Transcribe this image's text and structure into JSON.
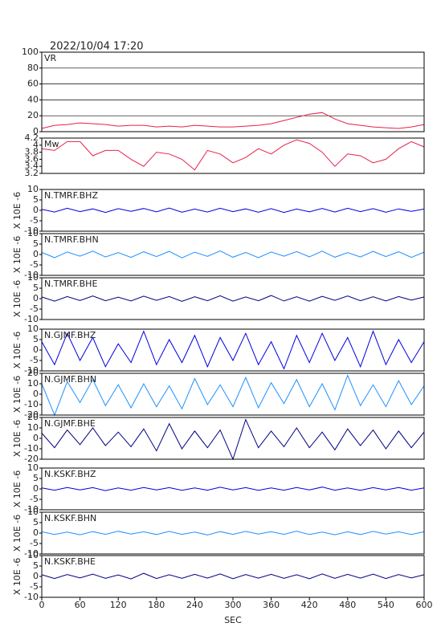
{
  "chart_data": [
    {
      "type": "line",
      "title": "2022/10/04  17:20",
      "x": [
        0,
        20,
        40,
        60,
        80,
        100,
        120,
        140,
        160,
        180,
        200,
        220,
        240,
        260,
        280,
        300,
        320,
        340,
        360,
        380,
        400,
        420,
        440,
        460,
        480,
        500,
        520,
        540,
        560,
        580,
        600
      ],
      "xlim": [
        0,
        600
      ],
      "ylim": [
        0,
        100
      ],
      "yticks": [
        0,
        20,
        40,
        60,
        80,
        100
      ],
      "grid": true,
      "series": [
        {
          "name": "VR",
          "color": "#e8204c",
          "values": [
            4,
            8,
            9,
            11,
            10,
            9,
            7,
            8,
            8,
            6,
            7,
            6,
            8,
            7,
            6,
            6,
            7,
            8,
            10,
            14,
            18,
            22,
            24,
            16,
            10,
            8,
            6,
            5,
            4,
            6,
            9
          ]
        }
      ]
    },
    {
      "type": "line",
      "x": [
        0,
        20,
        40,
        60,
        80,
        100,
        120,
        140,
        160,
        180,
        200,
        220,
        240,
        260,
        280,
        300,
        320,
        340,
        360,
        380,
        400,
        420,
        440,
        460,
        480,
        500,
        520,
        540,
        560,
        580,
        600
      ],
      "xlim": [
        0,
        600
      ],
      "ylim": [
        3.2,
        4.2
      ],
      "yticks": [
        3.2,
        3.4,
        3.6,
        3.8,
        4,
        4.2
      ],
      "grid": false,
      "series": [
        {
          "name": "Mw",
          "color": "#e8204c",
          "values": [
            3.9,
            3.85,
            4.1,
            4.1,
            3.7,
            3.85,
            3.85,
            3.6,
            3.4,
            3.8,
            3.75,
            3.6,
            3.3,
            3.85,
            3.75,
            3.5,
            3.65,
            3.9,
            3.75,
            4.0,
            4.15,
            4.05,
            3.8,
            3.4,
            3.75,
            3.7,
            3.5,
            3.6,
            3.9,
            4.1,
            3.95
          ]
        }
      ]
    },
    {
      "type": "line",
      "ylabel": "X 10E -6",
      "x": [
        0,
        20,
        40,
        60,
        80,
        100,
        120,
        140,
        160,
        180,
        200,
        220,
        240,
        260,
        280,
        300,
        320,
        340,
        360,
        380,
        400,
        420,
        440,
        460,
        480,
        500,
        520,
        540,
        560,
        580,
        600
      ],
      "xlim": [
        0,
        600
      ],
      "ylim": [
        -10,
        10
      ],
      "yticks": [
        -10,
        -5,
        0,
        5,
        10
      ],
      "grid": false,
      "series": [
        {
          "name": "N.TMRF.BHZ",
          "color": "#0000e0",
          "values": [
            0.5,
            -0.8,
            1,
            -0.6,
            0.7,
            -1,
            0.8,
            -0.5,
            0.9,
            -0.7,
            1.1,
            -0.9,
            0.6,
            -0.8,
            1,
            -0.6,
            0.7,
            -0.9,
            0.8,
            -1,
            0.6,
            -0.7,
            0.9,
            -0.8,
            1,
            -0.6,
            0.8,
            -0.9,
            0.7,
            -0.5,
            0.6
          ]
        }
      ]
    },
    {
      "type": "line",
      "ylabel": "X 10E -6",
      "x": [
        0,
        20,
        40,
        60,
        80,
        100,
        120,
        140,
        160,
        180,
        200,
        220,
        240,
        260,
        280,
        300,
        320,
        340,
        360,
        380,
        400,
        420,
        440,
        460,
        480,
        500,
        520,
        540,
        560,
        580,
        600
      ],
      "xlim": [
        0,
        600
      ],
      "ylim": [
        -10,
        10
      ],
      "yticks": [
        -10,
        -5,
        0,
        5,
        10
      ],
      "grid": false,
      "series": [
        {
          "name": "N.TMRF.BHN",
          "color": "#1e90ff",
          "values": [
            1,
            -1.5,
            1.2,
            -0.8,
            1.6,
            -1.2,
            0.9,
            -1.4,
            1.3,
            -1,
            1.5,
            -1.6,
            1.1,
            -0.9,
            1.7,
            -1.3,
            1,
            -1.5,
            1.2,
            -0.8,
            1.4,
            -1.1,
            1.6,
            -1.3,
            0.9,
            -1.2,
            1.5,
            -1,
            1.3,
            -1.4,
            1.1
          ]
        }
      ]
    },
    {
      "type": "line",
      "ylabel": "X 10E -6",
      "x": [
        0,
        20,
        40,
        60,
        80,
        100,
        120,
        140,
        160,
        180,
        200,
        220,
        240,
        260,
        280,
        300,
        320,
        340,
        360,
        380,
        400,
        420,
        440,
        460,
        480,
        500,
        520,
        540,
        560,
        580,
        600
      ],
      "xlim": [
        0,
        600
      ],
      "ylim": [
        -10,
        10
      ],
      "yticks": [
        -10,
        -5,
        0,
        5,
        10
      ],
      "grid": false,
      "series": [
        {
          "name": "N.TMRF.BHE",
          "color": "#000080",
          "values": [
            0.8,
            -1.2,
            1,
            -0.9,
            1.3,
            -1,
            0.7,
            -1.1,
            1.2,
            -0.8,
            1,
            -1.3,
            0.9,
            -1,
            1.4,
            -1.2,
            0.8,
            -1,
            1.5,
            -1.1,
            0.9,
            -1.2,
            1.1,
            -0.8,
            1.3,
            -1,
            0.9,
            -1.1,
            1,
            -0.7,
            0.8
          ]
        }
      ]
    },
    {
      "type": "line",
      "ylabel": "X 10E -6",
      "x": [
        0,
        20,
        40,
        60,
        80,
        100,
        120,
        140,
        160,
        180,
        200,
        220,
        240,
        260,
        280,
        300,
        320,
        340,
        360,
        380,
        400,
        420,
        440,
        460,
        480,
        500,
        520,
        540,
        560,
        580,
        600
      ],
      "xlim": [
        0,
        600
      ],
      "ylim": [
        -10,
        10
      ],
      "yticks": [
        -10,
        -5,
        0,
        5,
        10
      ],
      "grid": false,
      "series": [
        {
          "name": "N.GJMF.BHZ",
          "color": "#0000e0",
          "values": [
            4,
            -7,
            8,
            -5,
            6,
            -8,
            3,
            -6,
            9,
            -7,
            5,
            -6,
            7,
            -8,
            6,
            -5,
            8,
            -7,
            4,
            -9,
            7,
            -6,
            8,
            -5,
            6,
            -8,
            9,
            -7,
            5,
            -6,
            4
          ]
        }
      ]
    },
    {
      "type": "line",
      "ylabel": "X 10E -6",
      "x": [
        0,
        20,
        40,
        60,
        80,
        100,
        120,
        140,
        160,
        180,
        200,
        220,
        240,
        260,
        280,
        300,
        320,
        340,
        360,
        380,
        400,
        420,
        440,
        460,
        480,
        500,
        520,
        540,
        560,
        580,
        600
      ],
      "xlim": [
        0,
        600
      ],
      "ylim": [
        -20,
        20
      ],
      "yticks": [
        -20,
        -10,
        0,
        10,
        20
      ],
      "grid": false,
      "series": [
        {
          "name": "N.GJMF.BHN",
          "color": "#1e90ff",
          "values": [
            10,
            -20,
            12,
            -8,
            14,
            -11,
            9,
            -13,
            10,
            -12,
            8,
            -14,
            15,
            -10,
            9,
            -12,
            16,
            -13,
            11,
            -9,
            14,
            -12,
            10,
            -15,
            18,
            -11,
            9,
            -12,
            13,
            -10,
            8
          ]
        }
      ]
    },
    {
      "type": "line",
      "ylabel": "X 10E -6",
      "x": [
        0,
        20,
        40,
        60,
        80,
        100,
        120,
        140,
        160,
        180,
        200,
        220,
        240,
        260,
        280,
        300,
        320,
        340,
        360,
        380,
        400,
        420,
        440,
        460,
        480,
        500,
        520,
        540,
        560,
        580,
        600
      ],
      "xlim": [
        0,
        600
      ],
      "ylim": [
        -20,
        20
      ],
      "yticks": [
        -20,
        -10,
        0,
        10,
        20
      ],
      "grid": false,
      "series": [
        {
          "name": "N.GJMF.BHE",
          "color": "#000080",
          "values": [
            5,
            -9,
            8,
            -6,
            10,
            -7,
            6,
            -8,
            9,
            -12,
            14,
            -10,
            7,
            -9,
            8,
            -20,
            18,
            -9,
            7,
            -8,
            10,
            -9,
            6,
            -11,
            9,
            -7,
            8,
            -10,
            7,
            -9,
            6
          ]
        }
      ]
    },
    {
      "type": "line",
      "ylabel": "X 10E -6",
      "x": [
        0,
        20,
        40,
        60,
        80,
        100,
        120,
        140,
        160,
        180,
        200,
        220,
        240,
        260,
        280,
        300,
        320,
        340,
        360,
        380,
        400,
        420,
        440,
        460,
        480,
        500,
        520,
        540,
        560,
        580,
        600
      ],
      "xlim": [
        0,
        600
      ],
      "ylim": [
        -10,
        10
      ],
      "yticks": [
        -10,
        -5,
        0,
        5,
        10
      ],
      "grid": false,
      "series": [
        {
          "name": "N.KSKF.BHZ",
          "color": "#0000e0",
          "values": [
            0.5,
            -0.6,
            0.7,
            -0.5,
            0.6,
            -0.8,
            0.5,
            -0.6,
            0.7,
            -0.5,
            0.6,
            -0.7,
            0.5,
            -0.6,
            0.8,
            -0.5,
            0.6,
            -0.7,
            0.5,
            -0.6,
            0.7,
            -0.5,
            0.9,
            -0.6,
            0.5,
            -0.7,
            0.6,
            -0.5,
            0.7,
            -0.6,
            0.5
          ]
        }
      ]
    },
    {
      "type": "line",
      "ylabel": "X 10E -6",
      "x": [
        0,
        20,
        40,
        60,
        80,
        100,
        120,
        140,
        160,
        180,
        200,
        220,
        240,
        260,
        280,
        300,
        320,
        340,
        360,
        380,
        400,
        420,
        440,
        460,
        480,
        500,
        520,
        540,
        560,
        580,
        600
      ],
      "xlim": [
        0,
        600
      ],
      "ylim": [
        -10,
        10
      ],
      "yticks": [
        -10,
        -5,
        0,
        5,
        10
      ],
      "grid": false,
      "series": [
        {
          "name": "N.KSKF.BHN",
          "color": "#1e90ff",
          "values": [
            0.6,
            -0.7,
            0.5,
            -0.8,
            0.7,
            -0.6,
            0.9,
            -0.5,
            0.6,
            -0.7,
            0.8,
            -0.6,
            0.5,
            -0.9,
            0.7,
            -0.6,
            0.8,
            -0.5,
            0.7,
            -0.6,
            0.9,
            -0.7,
            0.5,
            -0.8,
            0.6,
            -0.7,
            0.8,
            -0.5,
            0.6,
            -0.7,
            0.6
          ]
        }
      ]
    },
    {
      "type": "line",
      "ylabel": "X 10E -6",
      "x": [
        0,
        20,
        40,
        60,
        80,
        100,
        120,
        140,
        160,
        180,
        200,
        220,
        240,
        260,
        280,
        300,
        320,
        340,
        360,
        380,
        400,
        420,
        440,
        460,
        480,
        500,
        520,
        540,
        560,
        580,
        600
      ],
      "xlim": [
        0,
        600
      ],
      "ylim": [
        -10,
        10
      ],
      "yticks": [
        -10,
        -5,
        0,
        5,
        10
      ],
      "xticks": [
        0,
        60,
        120,
        180,
        240,
        300,
        360,
        420,
        480,
        540,
        600
      ],
      "xlabel": "SEC",
      "grid": false,
      "series": [
        {
          "name": "N.KSKF.BHE",
          "color": "#000080",
          "values": [
            0.8,
            -1,
            0.9,
            -0.7,
            1.1,
            -0.9,
            0.7,
            -1.2,
            1.5,
            -1,
            0.8,
            -0.9,
            1,
            -0.8,
            1.2,
            -1.1,
            0.9,
            -0.8,
            1,
            -0.9,
            0.8,
            -1.1,
            1.2,
            -0.9,
            1,
            -0.8,
            1.1,
            -1,
            0.9,
            -0.7,
            0.8
          ]
        }
      ]
    }
  ]
}
